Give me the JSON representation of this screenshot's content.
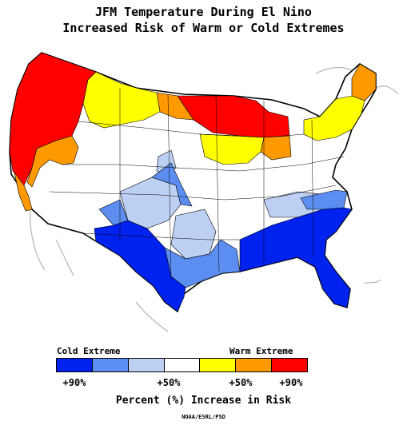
{
  "title_line1": "JFM Temperature During El Nino",
  "title_line2": "Increased Risk of Warm or Cold Extremes",
  "legend": {
    "left_label": "Cold Extreme",
    "right_label": "Warm Extreme",
    "ticks": [
      "+90%",
      "+50%",
      "+50%",
      "+90%"
    ],
    "colors": [
      "#0022ee",
      "#5b8ef0",
      "#bcd0f4",
      "#ffffff",
      "#ffff00",
      "#ff9900",
      "#ff0000"
    ],
    "axis_label": "Percent (%) Increase in Risk"
  },
  "credit": "NOAA/ESRL/PSD",
  "regions": [
    {
      "name": "pacific-northwest",
      "category": "warm-90",
      "color": "#ff0000"
    },
    {
      "name": "northern-rockies-plains",
      "category": "warm-50",
      "color": "#ffff00"
    },
    {
      "name": "upper-midwest",
      "category": "warm-90",
      "color": "#ff0000"
    },
    {
      "name": "great-lakes-northeast",
      "category": "warm-50",
      "color": "#ffff00"
    },
    {
      "name": "southern-plains-gulf-coast",
      "category": "cold-90",
      "color": "#0022ee"
    },
    {
      "name": "southeast",
      "category": "cold-90",
      "color": "#0022ee"
    }
  ]
}
